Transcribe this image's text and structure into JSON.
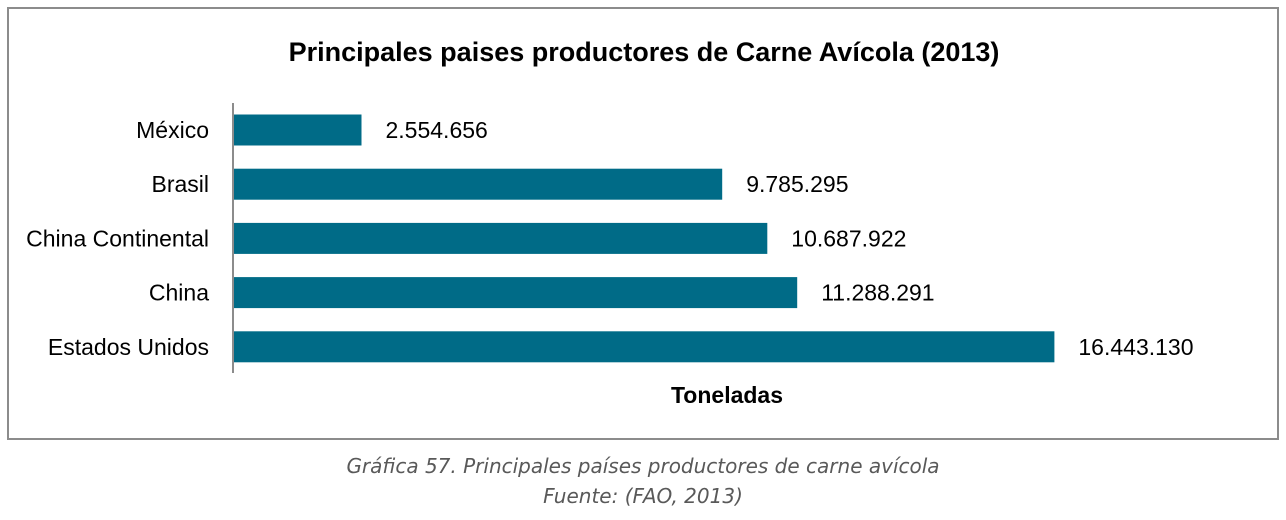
{
  "chart_data": {
    "type": "bar",
    "orientation": "horizontal",
    "title": "Principales paises productores de Carne Avícola (2013)",
    "xlabel": "Toneladas",
    "ylabel": "",
    "categories": [
      "México",
      "Brasil",
      "China Continental",
      "China",
      "Estados Unidos"
    ],
    "values": [
      2554656,
      9785295,
      10687922,
      11288291,
      16443130
    ],
    "value_labels": [
      "2.554.656",
      "9.785.295",
      "10.687.922",
      "11.288.291",
      "16.443.130"
    ],
    "xlim": [
      0,
      19000000
    ],
    "grid": false,
    "legend": "none",
    "bar_color": "#006b87"
  },
  "caption": {
    "line1": "Gráfica 57. Principales países productores de carne avícola",
    "line2": "Fuente: (FAO, 2013)"
  }
}
